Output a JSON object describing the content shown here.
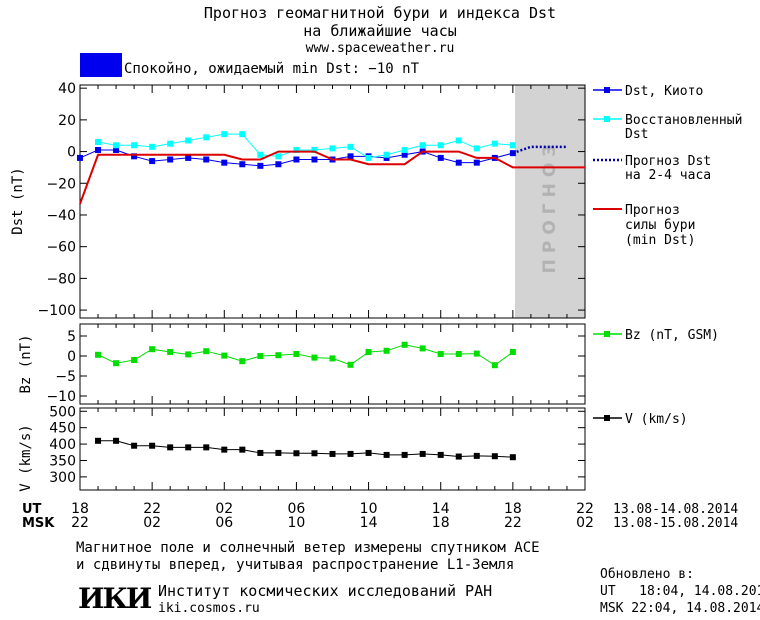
{
  "header": {
    "title_line1": "Прогноз геомагнитной бури и индекса Dst",
    "title_line2": "на ближайшие часы",
    "site": "www.spaceweather.ru"
  },
  "status": {
    "color": "#0000ee",
    "text": "Спокойно, ожидаемый min Dst: −10 nT"
  },
  "forecast_band_label": "ПРОГНОЗ",
  "legend": {
    "dst_kyoto": "Dst, Киото",
    "restored_1": "Восстановленный",
    "restored_2": "Dst",
    "forecast_1": "Прогноз Dst",
    "forecast_2": "на 2-4 часа",
    "storm_1": "Прогноз",
    "storm_2": "силы бури",
    "storm_3": "(min Dst)",
    "bz": "Bz (nT, GSM)",
    "v": "V (km/s)"
  },
  "axes": {
    "dst_ylabel": "Dst (nT)",
    "bz_ylabel": "Bz (nT)",
    "v_ylabel": "V (km/s)",
    "ut_label": "UT",
    "msk_label": "MSK",
    "ut_ticks": [
      "18",
      "22",
      "02",
      "06",
      "10",
      "14",
      "18",
      "22"
    ],
    "msk_ticks": [
      "22",
      "02",
      "06",
      "10",
      "14",
      "18",
      "22",
      "02"
    ],
    "ut_range": "13.08-14.08.2014",
    "msk_range": "13.08-15.08.2014"
  },
  "footer": {
    "note_1": "Магнитное поле и солнечный ветер измерены спутником ACE",
    "note_2": "и сдвинуты вперед, учитывая распространение L1-Земля",
    "logo": "ИКИ",
    "institute": "Институт космических исследований РАН",
    "institute_site": "iki.cosmos.ru",
    "updated": "Обновлено в:",
    "updated_ut": "UT   18:04, 14.08.2014",
    "updated_msk": "MSK 22:04, 14.08.2014"
  },
  "chart_data": [
    {
      "type": "line",
      "x_unit": "hours UT since 18:00 13.08",
      "xlim": [
        0,
        28
      ],
      "ylim": [
        -105,
        42
      ],
      "yticks": [
        40,
        20,
        0,
        -20,
        -40,
        -60,
        -80,
        -100
      ],
      "forecast_band": [
        24,
        28
      ],
      "series": [
        {
          "name": "Dst, Киото",
          "color": "#0000ee",
          "x": [
            0,
            1,
            2,
            3,
            4,
            5,
            6,
            7,
            8,
            9,
            10,
            11,
            12,
            13,
            14,
            15,
            16,
            17,
            18,
            19,
            20,
            21,
            22,
            23,
            24
          ],
          "y": [
            -4,
            1,
            1,
            -3,
            -6,
            -5,
            -4,
            -5,
            -7,
            -8,
            -9,
            -8,
            -5,
            -5,
            -5,
            -3,
            -3,
            -4,
            -2,
            0,
            -4,
            -7,
            -7,
            -4,
            -1
          ]
        },
        {
          "name": "Восстановленный Dst",
          "color": "#00ffff",
          "x": [
            1,
            2,
            3,
            4,
            5,
            6,
            7,
            8,
            9,
            10,
            11,
            12,
            13,
            14,
            15,
            16,
            17,
            18,
            19,
            20,
            21,
            22,
            23,
            24
          ],
          "y": [
            6,
            4,
            4,
            3,
            5,
            7,
            9,
            11,
            11,
            -2,
            -3,
            1,
            1,
            2,
            3,
            -4,
            -2,
            1,
            4,
            4,
            7,
            2,
            5,
            4
          ]
        },
        {
          "name": "Прогноз Dst на 2-4 часа",
          "color": "#0000aa",
          "x": [
            24,
            25,
            26,
            27
          ],
          "y": [
            -1,
            3,
            3,
            3
          ]
        },
        {
          "name": "Прогноз силы бури (min Dst)",
          "color": "#dd0000",
          "x": [
            0,
            1,
            2,
            3,
            4,
            5,
            6,
            7,
            8,
            9,
            10,
            11,
            12,
            13,
            14,
            15,
            16,
            17,
            18,
            19,
            20,
            21,
            22,
            23,
            24,
            25,
            26,
            27,
            28
          ],
          "y": [
            -33,
            -2,
            -2,
            -2,
            -2,
            -2,
            -2,
            -2,
            -2,
            -5,
            -5,
            0,
            0,
            0,
            -5,
            -5,
            -8,
            -8,
            -8,
            0,
            0,
            0,
            -4,
            -4,
            -10,
            -10,
            -10,
            -10,
            -10
          ]
        }
      ]
    },
    {
      "type": "line",
      "ylim": [
        -12,
        8
      ],
      "yticks": [
        5,
        0,
        -5,
        -10
      ],
      "series": [
        {
          "name": "Bz (nT, GSM)",
          "color": "#00dd00",
          "x": [
            1,
            2,
            3,
            4,
            5,
            6,
            7,
            8,
            9,
            10,
            11,
            12,
            13,
            14,
            15,
            16,
            17,
            18,
            19,
            20,
            21,
            22,
            23,
            24
          ],
          "y": [
            0.3,
            -1.8,
            -1,
            1.7,
            1,
            0.4,
            1.2,
            0.1,
            -1.3,
            0,
            0.2,
            0.5,
            -0.4,
            -0.6,
            -2.2,
            1,
            1.3,
            2.8,
            1.9,
            0.5,
            0.5,
            0.6,
            -2.3,
            1
          ]
        }
      ]
    },
    {
      "type": "line",
      "ylim": [
        260,
        510
      ],
      "yticks": [
        500,
        450,
        400,
        350,
        300
      ],
      "series": [
        {
          "name": "V (km/s)",
          "color": "#000000",
          "x": [
            1,
            2,
            3,
            4,
            5,
            6,
            7,
            8,
            9,
            10,
            11,
            12,
            13,
            14,
            15,
            16,
            17,
            18,
            19,
            20,
            21,
            22,
            23,
            24
          ],
          "y": [
            410,
            410,
            395,
            395,
            390,
            390,
            390,
            383,
            383,
            373,
            373,
            372,
            372,
            370,
            370,
            373,
            367,
            367,
            370,
            367,
            362,
            364,
            363,
            360
          ]
        }
      ]
    }
  ]
}
